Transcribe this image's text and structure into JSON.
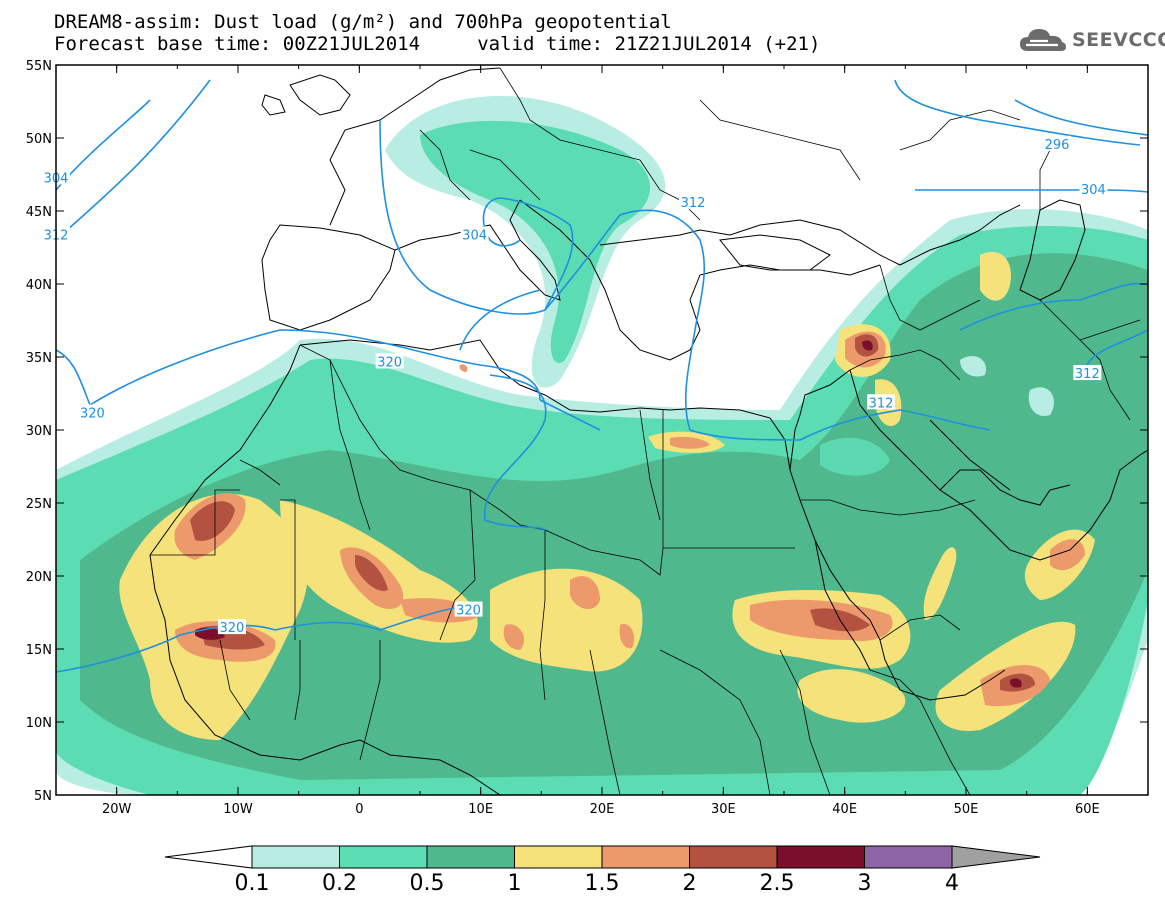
{
  "title": {
    "line1": "DREAM8-assim: Dust load (g/m²) and 700hPa geopotential",
    "line2": "Forecast base time: 00Z21JUL2014     valid time: 21Z21JUL2014 (+21)"
  },
  "logo": {
    "text": "SEEVCCC",
    "icon": "cloud-icon"
  },
  "map": {
    "lon_range": [
      -25,
      65
    ],
    "lat_range": [
      5,
      55
    ],
    "lon_ticks": [
      {
        "lon": -20,
        "label": "20W"
      },
      {
        "lon": -10,
        "label": "10W"
      },
      {
        "lon": 0,
        "label": "0"
      },
      {
        "lon": 10,
        "label": "10E"
      },
      {
        "lon": 20,
        "label": "20E"
      },
      {
        "lon": 30,
        "label": "30E"
      },
      {
        "lon": 40,
        "label": "40E"
      },
      {
        "lon": 50,
        "label": "50E"
      },
      {
        "lon": 60,
        "label": "60E"
      }
    ],
    "lat_ticks": [
      {
        "lat": 5,
        "label": "5N"
      },
      {
        "lat": 10,
        "label": "10N"
      },
      {
        "lat": 15,
        "label": "15N"
      },
      {
        "lat": 20,
        "label": "20N"
      },
      {
        "lat": 25,
        "label": "25N"
      },
      {
        "lat": 30,
        "label": "30N"
      },
      {
        "lat": 35,
        "label": "35N"
      },
      {
        "lat": 40,
        "label": "40N"
      },
      {
        "lat": 45,
        "label": "45N"
      },
      {
        "lat": 50,
        "label": "50N"
      },
      {
        "lat": 55,
        "label": "55N"
      }
    ],
    "contour_labels": [
      {
        "text": "304",
        "lon": -25,
        "lat": 47.3
      },
      {
        "text": "312",
        "lon": -25,
        "lat": 43.4
      },
      {
        "text": "296",
        "lon": 57.5,
        "lat": 49.6
      },
      {
        "text": "304",
        "lon": 60.5,
        "lat": 46.5
      },
      {
        "text": "312",
        "lon": 27.5,
        "lat": 45.6
      },
      {
        "text": "304",
        "lon": 9.5,
        "lat": 43.4
      },
      {
        "text": "320",
        "lon": 2.5,
        "lat": 34.7
      },
      {
        "text": "320",
        "lon": -22,
        "lat": 31.2
      },
      {
        "text": "312",
        "lon": 43,
        "lat": 31.9
      },
      {
        "text": "312",
        "lon": 60,
        "lat": 33.9
      },
      {
        "text": "320",
        "lon": 9,
        "lat": 17.7
      },
      {
        "text": "320",
        "lon": -10.5,
        "lat": 16.5
      }
    ]
  },
  "colorbar": {
    "labels": [
      "0.1",
      "0.2",
      "0.5",
      "1",
      "1.5",
      "2",
      "2.5",
      "3",
      "4"
    ],
    "colors": [
      "#b7ede2",
      "#5cdcb2",
      "#4fb98d",
      "#f5e27a",
      "#ec9a6b",
      "#b45242",
      "#7a0f2c",
      "#8e65a4"
    ],
    "under_color": "#ffffff",
    "over_color": "#a0a0a0"
  },
  "colors": {
    "contour": "#1e90e0",
    "coast": "#000000",
    "label_bg": "#ffffff"
  }
}
